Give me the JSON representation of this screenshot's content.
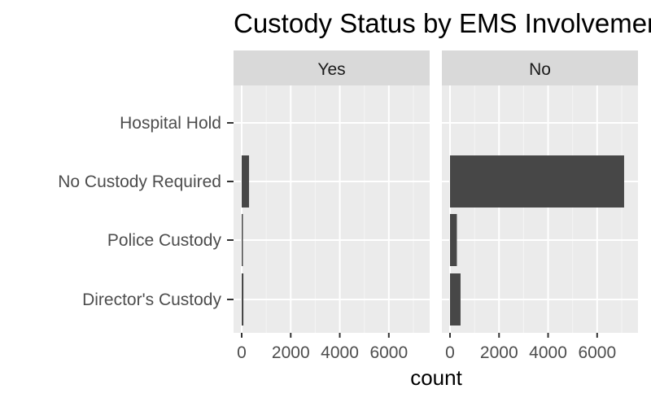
{
  "chart_data": {
    "type": "bar",
    "orientation": "horizontal",
    "title": "Custody Status by EMS Involvement",
    "xlabel": "count",
    "ylabel": "",
    "categories": [
      "Hospital Hold",
      "No Custody Required",
      "Police Custody",
      "Director's Custody"
    ],
    "xlim": [
      0,
      7400
    ],
    "xticks": [
      0,
      2000,
      4000,
      6000
    ],
    "grid": true,
    "facets": [
      {
        "strip": "Yes",
        "values": [
          0,
          300,
          40,
          70
        ]
      },
      {
        "strip": "No",
        "values": [
          0,
          7100,
          280,
          430
        ]
      }
    ],
    "colors": {
      "bar": "#474747",
      "panel": "#ebebeb",
      "strip": "#d9d9d9",
      "grid_major": "#ffffff",
      "grid_minor": "#f5f5f5",
      "tick": "#333333"
    }
  }
}
